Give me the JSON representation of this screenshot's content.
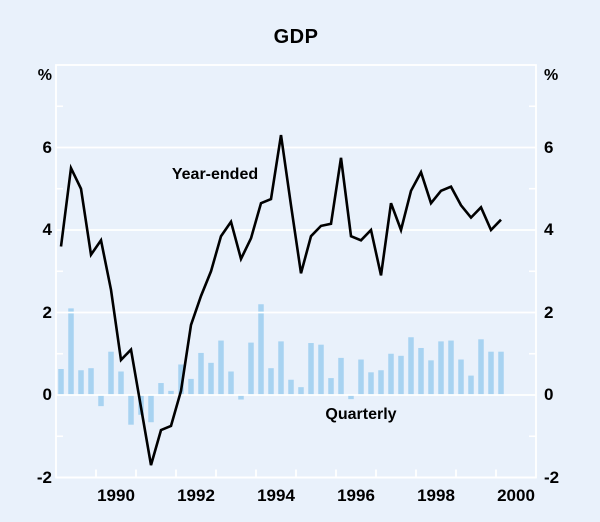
{
  "title": "GDP",
  "unit_label_left": "%",
  "unit_label_right": "%",
  "series_labels": {
    "line": "Year-ended",
    "bars": "Quarterly"
  },
  "colors": {
    "background": "#e9f1fb",
    "grid": "#ffffff",
    "bar": "#a8d3f1",
    "line": "#000000",
    "text": "#000000"
  },
  "chart_data": {
    "type": "bar+line",
    "title": "GDP",
    "ylabel": "%",
    "ylim": [
      -2,
      8
    ],
    "y_ticks": [
      -2,
      0,
      2,
      4,
      6
    ],
    "y_minor_ticks": [
      -1,
      1,
      3,
      5,
      7
    ],
    "x_range_years": [
      1989,
      2001
    ],
    "x_tick_labels": [
      "1990",
      "1992",
      "1994",
      "1996",
      "1998",
      "2000"
    ],
    "grid": "horizontal-white-gridlines",
    "legend_position": "inline-annotations",
    "x": [
      "Mar-89",
      "Jun-89",
      "Sep-89",
      "Dec-89",
      "Mar-90",
      "Jun-90",
      "Sep-90",
      "Dec-90",
      "Mar-91",
      "Jun-91",
      "Sep-91",
      "Dec-91",
      "Mar-92",
      "Jun-92",
      "Sep-92",
      "Dec-92",
      "Mar-93",
      "Jun-93",
      "Sep-93",
      "Dec-93",
      "Mar-94",
      "Jun-94",
      "Sep-94",
      "Dec-94",
      "Mar-95",
      "Jun-95",
      "Sep-95",
      "Dec-95",
      "Mar-96",
      "Jun-96",
      "Sep-96",
      "Dec-96",
      "Mar-97",
      "Jun-97",
      "Sep-97",
      "Dec-97",
      "Mar-98",
      "Jun-98",
      "Sep-98",
      "Dec-98",
      "Mar-99",
      "Jun-99",
      "Sep-99",
      "Dec-99",
      "Mar-00"
    ],
    "series": [
      {
        "name": "Year-ended",
        "type": "line",
        "values": [
          3.6,
          5.5,
          5.0,
          3.4,
          3.75,
          2.55,
          0.85,
          1.1,
          -0.3,
          -1.7,
          -0.85,
          -0.75,
          0.1,
          1.7,
          2.4,
          3.0,
          3.85,
          4.2,
          3.3,
          3.8,
          4.65,
          4.75,
          6.3,
          4.6,
          2.95,
          3.85,
          4.1,
          4.15,
          5.75,
          3.85,
          3.75,
          4.0,
          2.9,
          4.65,
          4.0,
          4.95,
          5.4,
          4.65,
          4.95,
          5.05,
          4.6,
          4.3,
          4.55,
          4.0,
          4.25
        ]
      },
      {
        "name": "Quarterly",
        "type": "bar",
        "values": [
          0.63,
          2.1,
          0.6,
          0.65,
          -0.27,
          1.05,
          0.57,
          -0.72,
          -0.48,
          -0.66,
          0.29,
          0.1,
          0.74,
          0.39,
          1.02,
          0.78,
          1.32,
          0.57,
          -0.11,
          1.27,
          2.2,
          0.65,
          1.3,
          0.37,
          0.19,
          1.26,
          1.22,
          0.41,
          0.9,
          -0.1,
          0.86,
          0.55,
          0.6,
          1.0,
          0.95,
          1.4,
          1.14,
          0.84,
          1.3,
          1.32,
          0.86,
          0.47,
          1.35,
          1.05,
          1.05
        ]
      }
    ]
  }
}
